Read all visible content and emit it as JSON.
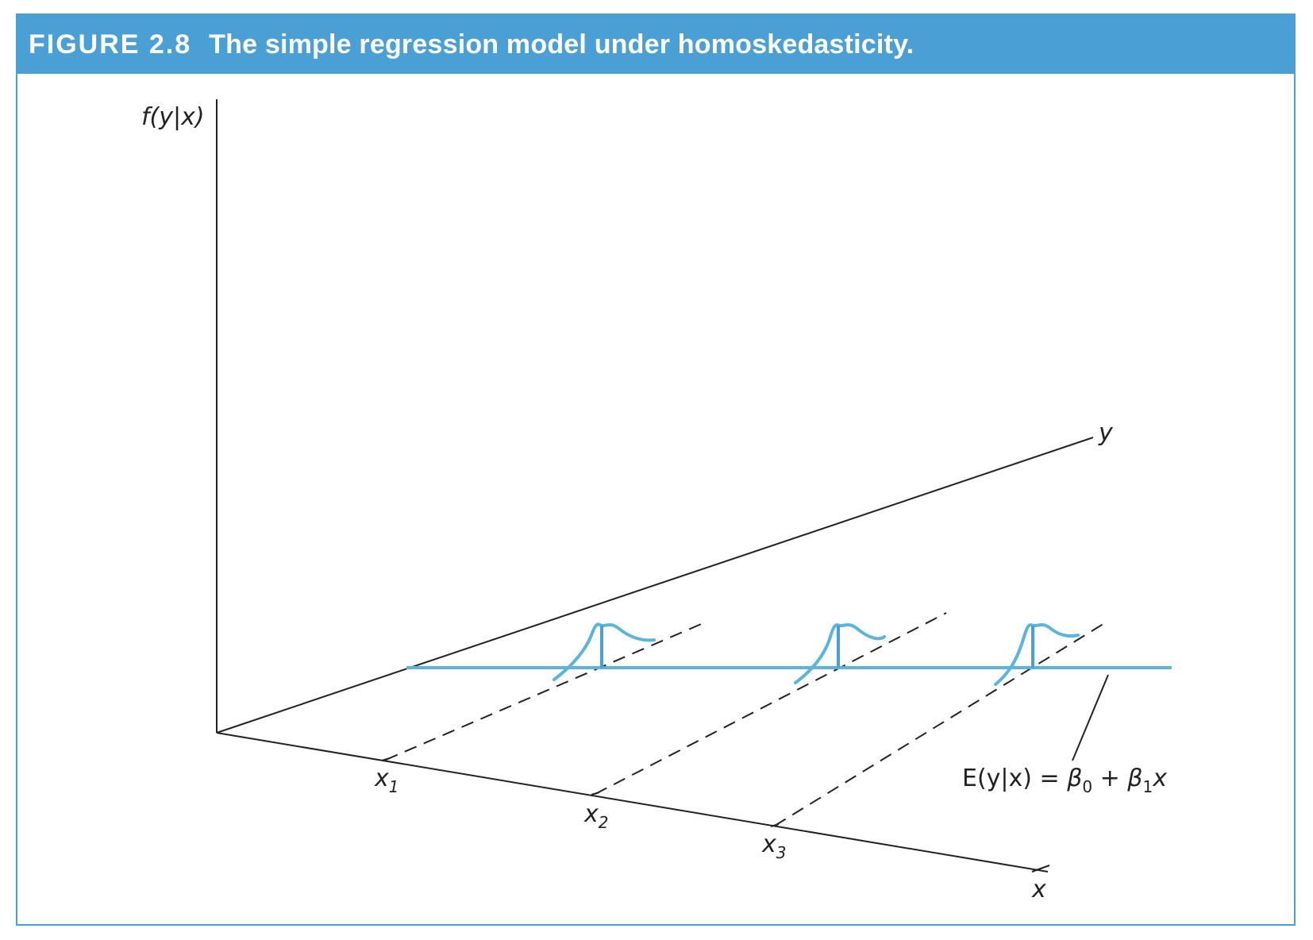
{
  "figure": {
    "label": "FIGURE 2.8",
    "title": "The simple regression model under homoskedasticity."
  },
  "axes": {
    "vertical_label": "f(y|x)",
    "y_label": "y",
    "x_label": "x"
  },
  "x_ticks": [
    {
      "base": "x",
      "sub": "1"
    },
    {
      "base": "x",
      "sub": "2"
    },
    {
      "base": "x",
      "sub": "3"
    }
  ],
  "regression_line_label": {
    "prefix": "E(y|x) = ",
    "beta": "β",
    "sub0": "0",
    "plus": " + ",
    "sub1": "1",
    "var": "x"
  },
  "colors": {
    "frame": "#4aa0d5",
    "curve": "#5ab4dc",
    "axis": "#222222"
  }
}
